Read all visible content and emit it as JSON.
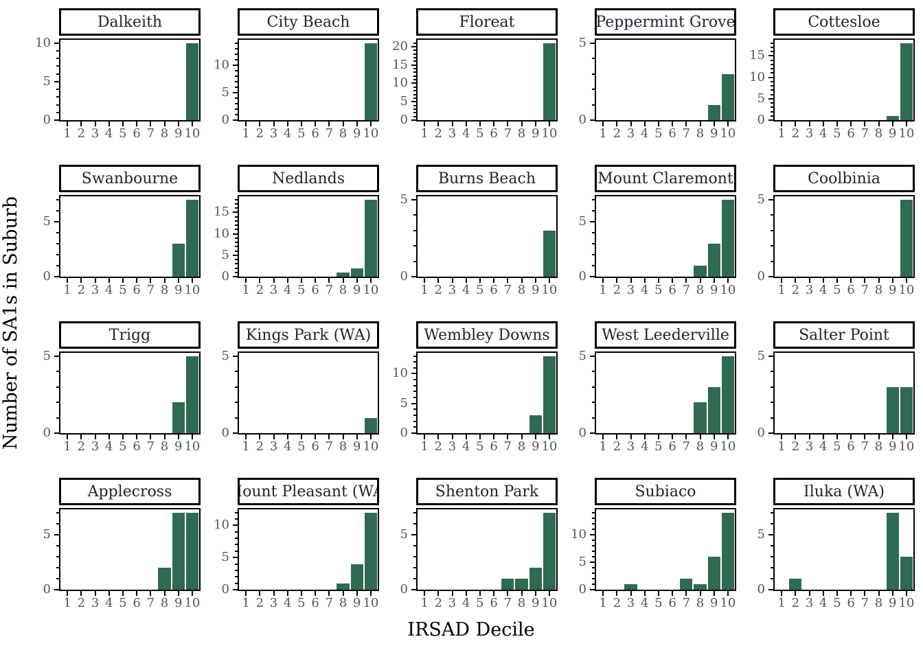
{
  "figure": {
    "xlabel": "IRSAD Decile",
    "ylabel": "Number of SA1s in Suburb"
  },
  "style": {
    "bar_color": "#2e6b52",
    "tick_label_color": "#4d5766",
    "strip_title_color": "#1d2330",
    "axis_title_color": "#000000",
    "border_color": "#000000"
  },
  "chart_data": {
    "type": "bar",
    "layout": "faceted small multiples, 5 columns x 4 rows, free y scales",
    "categories": [
      1,
      2,
      3,
      4,
      5,
      6,
      7,
      8,
      9,
      10
    ],
    "xlabel": "IRSAD Decile",
    "ylabel": "Number of SA1s in Suburb",
    "y_major_tick_step": 5,
    "y_minor_tick_step": 1,
    "grid": "off",
    "facets": [
      {
        "name": "Dalkeith",
        "values": [
          0,
          0,
          0,
          0,
          0,
          0,
          0,
          0,
          0,
          10
        ]
      },
      {
        "name": "City Beach",
        "values": [
          0,
          0,
          0,
          0,
          0,
          0,
          0,
          0,
          0,
          14
        ]
      },
      {
        "name": "Floreat",
        "values": [
          0,
          0,
          0,
          0,
          0,
          0,
          0,
          0,
          0,
          21
        ]
      },
      {
        "name": "Peppermint Grove",
        "values": [
          0,
          0,
          0,
          0,
          0,
          0,
          0,
          0,
          1,
          3
        ]
      },
      {
        "name": "Cottesloe",
        "values": [
          0,
          0,
          0,
          0,
          0,
          0,
          0,
          0,
          1,
          18
        ]
      },
      {
        "name": "Swanbourne",
        "values": [
          0,
          0,
          0,
          0,
          0,
          0,
          0,
          0,
          3,
          7
        ]
      },
      {
        "name": "Nedlands",
        "values": [
          0,
          0,
          0,
          0,
          0,
          0,
          0,
          1,
          2,
          18
        ]
      },
      {
        "name": "Burns Beach",
        "values": [
          0,
          0,
          0,
          0,
          0,
          0,
          0,
          0,
          0,
          3
        ]
      },
      {
        "name": "Mount Claremont",
        "values": [
          0,
          0,
          0,
          0,
          0,
          0,
          0,
          1,
          3,
          7
        ]
      },
      {
        "name": "Coolbinia",
        "values": [
          0,
          0,
          0,
          0,
          0,
          0,
          0,
          0,
          0,
          5
        ]
      },
      {
        "name": "Trigg",
        "values": [
          0,
          0,
          0,
          0,
          0,
          0,
          0,
          0,
          2,
          5
        ]
      },
      {
        "name": "Kings Park (WA)",
        "values": [
          0,
          0,
          0,
          0,
          0,
          0,
          0,
          0,
          0,
          1
        ]
      },
      {
        "name": "Wembley Downs",
        "values": [
          0,
          0,
          0,
          0,
          0,
          0,
          0,
          0,
          3,
          13
        ]
      },
      {
        "name": "West Leederville",
        "values": [
          0,
          0,
          0,
          0,
          0,
          0,
          0,
          2,
          3,
          5
        ]
      },
      {
        "name": "Salter Point",
        "values": [
          0,
          0,
          0,
          0,
          0,
          0,
          0,
          0,
          3,
          3
        ]
      },
      {
        "name": "Applecross",
        "values": [
          0,
          0,
          0,
          0,
          0,
          0,
          0,
          2,
          7,
          7
        ]
      },
      {
        "name": "Mount Pleasant (WA)",
        "values": [
          0,
          0,
          0,
          0,
          0,
          0,
          0,
          1,
          4,
          12
        ]
      },
      {
        "name": "Shenton Park",
        "values": [
          0,
          0,
          0,
          0,
          0,
          0,
          1,
          1,
          2,
          7
        ]
      },
      {
        "name": "Subiaco",
        "values": [
          0,
          0,
          1,
          0,
          0,
          0,
          2,
          1,
          6,
          14
        ]
      },
      {
        "name": "Iluka (WA)",
        "values": [
          0,
          1,
          0,
          0,
          0,
          0,
          0,
          0,
          7,
          3
        ]
      }
    ]
  }
}
